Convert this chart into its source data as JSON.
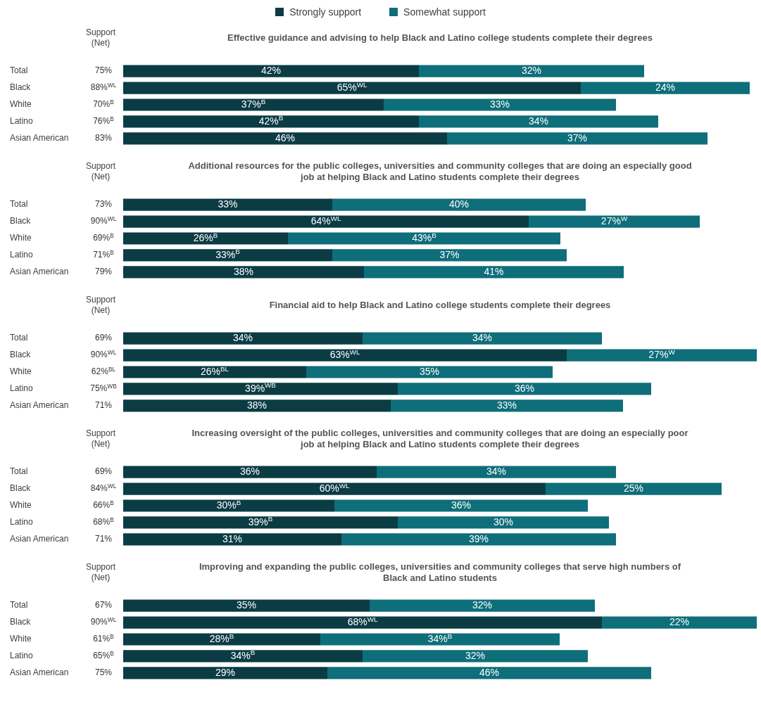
{
  "chart_data": [
    {
      "type": "bar",
      "orientation": "horizontal",
      "stacked": true,
      "title": "Effective guidance and advising to help Black and Latino college students complete their degrees",
      "categories": [
        "Total",
        "Black",
        "White",
        "Latino",
        "Asian American"
      ],
      "tick_labels": "y",
      "legend": "top",
      "annotations": [
        "Support (Net)"
      ],
      "series": [
        {
          "name": "Strongly support",
          "color": "#0b3c44",
          "values": [
            42,
            65,
            37,
            42,
            46
          ],
          "value_labels": [
            "42%",
            "65%$^{WL}$",
            "37%$^{B}$",
            "42%$^{B}$",
            "46%"
          ]
        },
        {
          "name": "Somewhat support",
          "color": "#0e6e7a",
          "values": [
            32,
            24,
            33,
            34,
            37
          ],
          "value_labels": [
            "32%",
            "24%",
            "33%",
            "34%",
            "37%"
          ]
        }
      ],
      "totals": [
        "75%",
        "88%$^{WL}$",
        "70%$^{B}$",
        "76%$^{B}$",
        "83%"
      ]
    },
    {
      "type": "bar",
      "orientation": "horizontal",
      "stacked": true,
      "title": "Additional resources for the public colleges, universities and community colleges that are doing an especially good job at helping Black and Latino students complete their degrees",
      "categories": [
        "Total",
        "Black",
        "White",
        "Latino",
        "Asian American"
      ],
      "tick_labels": "y",
      "annotations": [
        "Support (Net)"
      ],
      "series": [
        {
          "color": "#0b3c44",
          "values": [
            33,
            64,
            26,
            33,
            38
          ],
          "value_labels": [
            "33%",
            "64%$^{WL}$",
            "26%$^{B}$",
            "33%$^{B}$",
            "38%"
          ]
        },
        {
          "color": "#0e6e7a",
          "values": [
            40,
            27,
            43,
            37,
            41
          ],
          "value_labels": [
            "40%",
            "27%$^{W}$",
            "43%$^{B}$",
            "37%",
            "41%"
          ]
        }
      ],
      "totals": [
        "73%",
        "90%$^{WL}$",
        "69%$^{B}$",
        "71%$^{B}$",
        "79%"
      ]
    },
    {
      "type": "bar",
      "orientation": "horizontal",
      "stacked": true,
      "title": "Financial aid to help Black and Latino college students complete their degrees",
      "categories": [
        "Total",
        "Black",
        "White",
        "Latino",
        "Asian American"
      ],
      "tick_labels": "y",
      "annotations": [
        "Support (Net)"
      ],
      "series": [
        {
          "color": "#0b3c44",
          "values": [
            34,
            63,
            26,
            39,
            38
          ],
          "value_labels": [
            "34%",
            "63%$^{WL}$",
            "26%$^{BL}$",
            "39%$^{WB}$",
            "38%"
          ]
        },
        {
          "color": "#0e6e7a",
          "values": [
            34,
            27,
            35,
            36,
            33
          ],
          "value_labels": [
            "34%",
            "27%$^{W}$",
            "35%",
            "36%",
            "33%"
          ]
        }
      ],
      "totals": [
        "69%",
        "90%$^{WL}$",
        "62%$^{BL}$",
        "75%$^{WB}$",
        "71%"
      ]
    },
    {
      "type": "bar",
      "orientation": "horizontal",
      "stacked": true,
      "title": "Increasing oversight of the public colleges, universities and community colleges that are doing an especially poor job at helping Black and Latino students complete their degrees",
      "categories": [
        "Total",
        "Black",
        "White",
        "Latino",
        "Asian American"
      ],
      "tick_labels": "y",
      "annotations": [
        "Support (Net)"
      ],
      "series": [
        {
          "color": "#0b3c44",
          "values": [
            36,
            60,
            30,
            39,
            31
          ],
          "value_labels": [
            "36%",
            "60%$^{WL}$",
            "30%$^{B}$",
            "39%$^{B}$",
            "31%"
          ]
        },
        {
          "color": "#0e6e7a",
          "values": [
            34,
            25,
            36,
            30,
            39
          ],
          "value_labels": [
            "34%",
            "25%",
            "36%",
            "30%",
            "39%"
          ]
        }
      ],
      "totals": [
        "69%",
        "84%$^{WL}$",
        "66%$^{B}$",
        "68%$^{B}$",
        "71%"
      ]
    },
    {
      "type": "bar",
      "orientation": "horizontal",
      "stacked": true,
      "title": "Improving and expanding the public colleges, universities and community colleges that serve high numbers of Black and Latino students",
      "categories": [
        "Total",
        "Black",
        "White",
        "Latino",
        "Asian American"
      ],
      "tick_labels": "y",
      "annotations": [
        "Support (Net)"
      ],
      "series": [
        {
          "color": "#0b3c44",
          "values": [
            35,
            68,
            28,
            34,
            29
          ],
          "value_labels": [
            "35%",
            "68%$^{WL}$",
            "28%$^{B}$",
            "34%$^{B}$",
            "29%"
          ]
        },
        {
          "color": "#0e6e7a",
          "values": [
            32,
            22,
            34,
            32,
            46
          ],
          "value_labels": [
            "32%",
            "22%",
            "34%$^{B}$",
            "32%",
            "46%"
          ]
        }
      ],
      "totals": [
        "67%",
        "90%$^{WL}$",
        "61%$^{B}$",
        "65%$^{B}$",
        "75%"
      ]
    }
  ]
}
